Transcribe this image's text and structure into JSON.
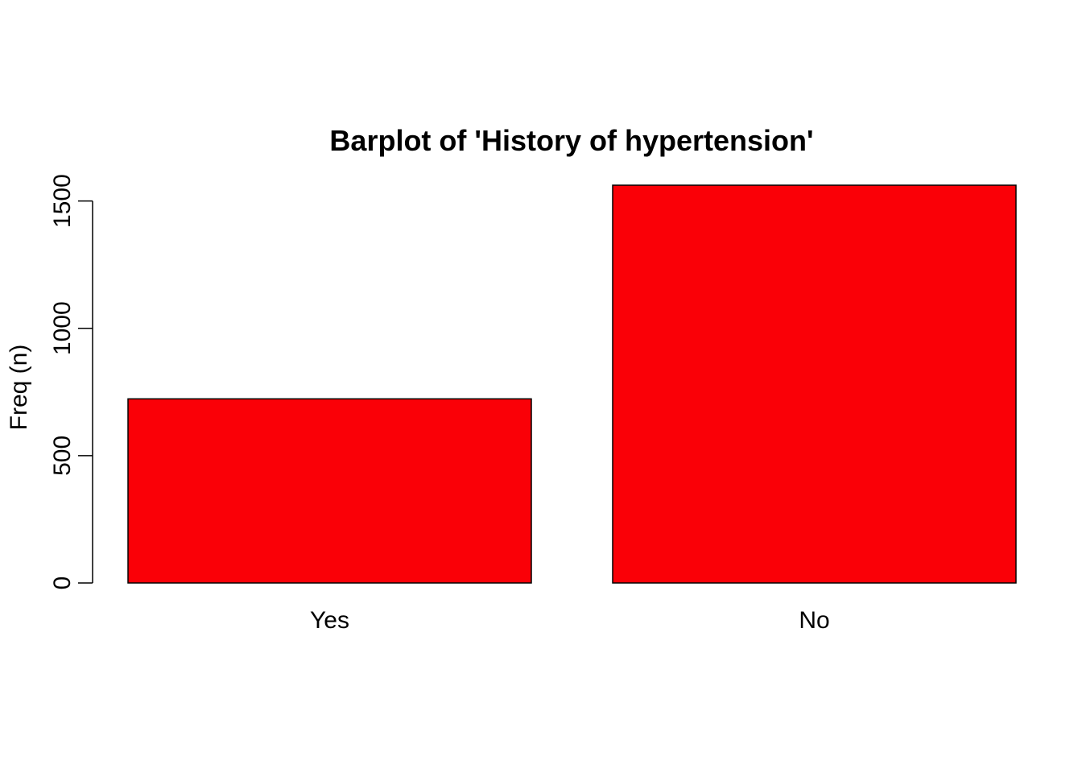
{
  "chart_data": {
    "type": "bar",
    "title": "Barplot of 'History of hypertension'",
    "xlabel": "",
    "ylabel": "Freq (n)",
    "categories": [
      "Yes",
      "No"
    ],
    "values": [
      723,
      1562
    ],
    "ylim": [
      0,
      1562
    ],
    "yticks": [
      0,
      500,
      1000,
      1500
    ],
    "bar_color": "#FA0007",
    "border_color": "#000000",
    "grid": false,
    "legend": "none"
  }
}
